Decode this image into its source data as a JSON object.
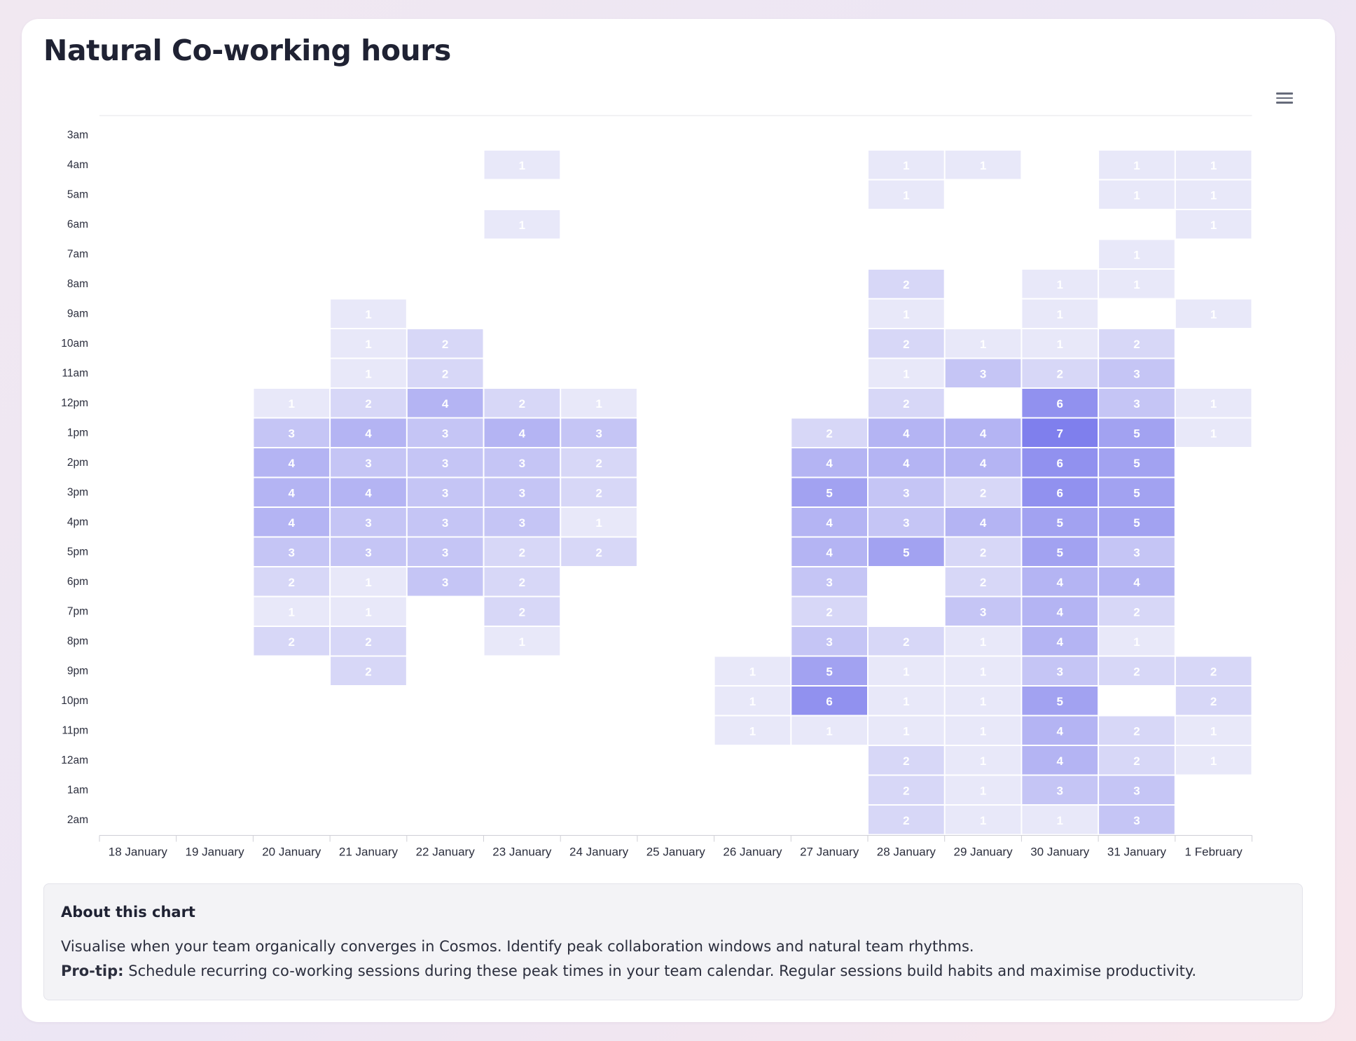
{
  "title": "Natural Co-working hours",
  "menu_icon": "hamburger-menu-icon",
  "about": {
    "heading": "About this chart",
    "description": "Visualise when your team organically converges in Cosmos. Identify peak collaboration windows and natural team rhythms.",
    "tip_label": "Pro-tip:",
    "tip_text": " Schedule recurring co-working sessions during these peak times in your team calendar. Regular sessions build habits and maximise productivity."
  },
  "colors": {
    "scale_low": "#e8e8f9",
    "scale_high": "#7f7fed",
    "label_text": "#ffffff",
    "axis_text": "#2b2e3d"
  },
  "chart_data": {
    "type": "heatmap",
    "title": "Natural Co-working hours",
    "xlabel": "",
    "ylabel": "",
    "x": [
      "18 January",
      "19 January",
      "20 January",
      "21 January",
      "22 January",
      "23 January",
      "24 January",
      "25 January",
      "26 January",
      "27 January",
      "28 January",
      "29 January",
      "30 January",
      "31 January",
      "1 February"
    ],
    "y": [
      "3am",
      "4am",
      "5am",
      "6am",
      "7am",
      "8am",
      "9am",
      "10am",
      "11am",
      "12pm",
      "1pm",
      "2pm",
      "3pm",
      "4pm",
      "5pm",
      "6pm",
      "7pm",
      "8pm",
      "9pm",
      "10pm",
      "11pm",
      "12am",
      "1am",
      "2am"
    ],
    "values": [
      [
        null,
        null,
        null,
        null,
        null,
        null,
        null,
        null,
        null,
        null,
        null,
        null,
        null,
        null,
        null
      ],
      [
        null,
        null,
        null,
        null,
        null,
        1,
        null,
        null,
        null,
        null,
        1,
        1,
        null,
        1,
        1
      ],
      [
        null,
        null,
        null,
        null,
        null,
        null,
        null,
        null,
        null,
        null,
        1,
        null,
        null,
        1,
        1
      ],
      [
        null,
        null,
        null,
        null,
        null,
        1,
        null,
        null,
        null,
        null,
        null,
        null,
        null,
        null,
        1
      ],
      [
        null,
        null,
        null,
        null,
        null,
        null,
        null,
        null,
        null,
        null,
        null,
        null,
        null,
        1,
        null
      ],
      [
        null,
        null,
        null,
        null,
        null,
        null,
        null,
        null,
        null,
        null,
        2,
        null,
        1,
        1,
        null
      ],
      [
        null,
        null,
        null,
        1,
        null,
        null,
        null,
        null,
        null,
        null,
        1,
        null,
        1,
        null,
        1
      ],
      [
        null,
        null,
        null,
        1,
        2,
        null,
        null,
        null,
        null,
        null,
        2,
        1,
        1,
        2,
        null
      ],
      [
        null,
        null,
        null,
        1,
        2,
        null,
        null,
        null,
        null,
        null,
        1,
        3,
        2,
        3,
        null
      ],
      [
        null,
        null,
        1,
        2,
        4,
        2,
        1,
        null,
        null,
        null,
        2,
        null,
        6,
        3,
        1
      ],
      [
        null,
        null,
        3,
        4,
        3,
        4,
        3,
        null,
        null,
        2,
        4,
        4,
        7,
        5,
        1
      ],
      [
        null,
        null,
        4,
        3,
        3,
        3,
        2,
        null,
        null,
        4,
        4,
        4,
        6,
        5,
        null
      ],
      [
        null,
        null,
        4,
        4,
        3,
        3,
        2,
        null,
        null,
        5,
        3,
        2,
        6,
        5,
        null
      ],
      [
        null,
        null,
        4,
        3,
        3,
        3,
        1,
        null,
        null,
        4,
        3,
        4,
        5,
        5,
        null
      ],
      [
        null,
        null,
        3,
        3,
        3,
        2,
        2,
        null,
        null,
        4,
        5,
        2,
        5,
        3,
        null
      ],
      [
        null,
        null,
        2,
        1,
        3,
        2,
        null,
        null,
        null,
        3,
        null,
        2,
        4,
        4,
        null
      ],
      [
        null,
        null,
        1,
        1,
        null,
        2,
        null,
        null,
        null,
        2,
        null,
        3,
        4,
        2,
        null
      ],
      [
        null,
        null,
        2,
        2,
        null,
        1,
        null,
        null,
        null,
        3,
        2,
        1,
        4,
        1,
        null
      ],
      [
        null,
        null,
        null,
        2,
        null,
        null,
        null,
        null,
        1,
        5,
        1,
        1,
        3,
        2,
        2
      ],
      [
        null,
        null,
        null,
        null,
        null,
        null,
        null,
        null,
        1,
        6,
        1,
        1,
        5,
        null,
        2
      ],
      [
        null,
        null,
        null,
        null,
        null,
        null,
        null,
        null,
        1,
        1,
        1,
        1,
        4,
        2,
        1
      ],
      [
        null,
        null,
        null,
        null,
        null,
        null,
        null,
        null,
        null,
        null,
        2,
        1,
        4,
        2,
        1
      ],
      [
        null,
        null,
        null,
        null,
        null,
        null,
        null,
        null,
        null,
        null,
        2,
        1,
        3,
        3,
        null
      ],
      [
        null,
        null,
        null,
        null,
        null,
        null,
        null,
        null,
        null,
        null,
        2,
        1,
        1,
        3,
        null
      ]
    ],
    "value_range": [
      1,
      7
    ],
    "legend": "none",
    "grid": false
  }
}
